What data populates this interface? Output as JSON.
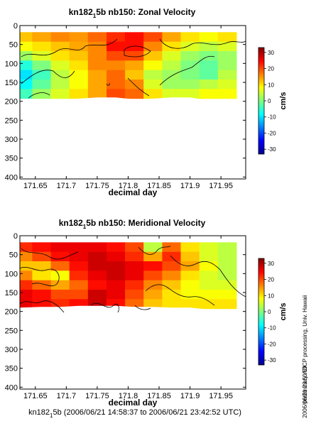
{
  "charts": [
    {
      "title_main": "kn182",
      "title_sub": "1",
      "title_rest": "5b nb150: Zonal Velocity",
      "xlabel": "decimal day",
      "unit": "cm/s",
      "xticks": [
        "171.65",
        "171.7",
        "171.75",
        "171.8",
        "171.85",
        "171.9",
        "171.95"
      ],
      "yticks": [
        "0",
        "50",
        "100",
        "150",
        "200",
        "250",
        "300",
        "350",
        "400"
      ],
      "cbticks": [
        "30",
        "20",
        "10",
        "0",
        "-10",
        "-20",
        "-30"
      ]
    },
    {
      "title_main": "kn182",
      "title_sub": "1",
      "title_rest": "5b nb150: Meridional Velocity",
      "xlabel": "decimal day",
      "unit": "cm/s",
      "xticks": [
        "171.65",
        "171.7",
        "171.75",
        "171.8",
        "171.85",
        "171.9",
        "171.95"
      ],
      "yticks": [
        "0",
        "50",
        "100",
        "150",
        "200",
        "250",
        "300",
        "350",
        "400"
      ],
      "cbticks": [
        "30",
        "20",
        "10",
        "0",
        "-10",
        "-20",
        "-30"
      ]
    }
  ],
  "footer": {
    "main": "kn182",
    "sub": "1",
    "rest": "5b (2006/06/21 14:58:37 to 2006/06/21 23:42:52 UTC)"
  },
  "side_note": "preliminary ADCP processing,  Univ. Hawaii",
  "side_date": "2006/06/21 23:50:59",
  "chart_data": [
    {
      "type": "heatmap",
      "title": "kn182_1 5b nb150: Zonal Velocity",
      "xlabel": "decimal day",
      "ylabel": "",
      "colorbar_label": "cm/s",
      "xlim": [
        171.625,
        171.99
      ],
      "ylim": [
        405,
        0
      ],
      "clim": [
        -33,
        33
      ],
      "x": [
        171.63,
        171.66,
        171.69,
        171.72,
        171.75,
        171.78,
        171.81,
        171.84,
        171.87,
        171.9,
        171.93,
        171.96
      ],
      "depth": [
        30,
        55,
        80,
        105,
        130,
        155,
        180
      ],
      "values_cm_s": [
        [
          12,
          14,
          16,
          15,
          18,
          22,
          24,
          20,
          14,
          10,
          8,
          10
        ],
        [
          8,
          10,
          12,
          14,
          16,
          24,
          24,
          16,
          10,
          6,
          4,
          6
        ],
        [
          2,
          6,
          10,
          12,
          16,
          20,
          20,
          12,
          6,
          2,
          0,
          2
        ],
        [
          -6,
          0,
          6,
          10,
          16,
          16,
          14,
          8,
          4,
          0,
          -2,
          2
        ],
        [
          -10,
          -4,
          4,
          8,
          14,
          18,
          12,
          4,
          2,
          0,
          -2,
          4
        ],
        [
          -8,
          -2,
          4,
          8,
          14,
          18,
          16,
          6,
          2,
          2,
          4,
          6
        ],
        [
          -4,
          2,
          6,
          10,
          14,
          20,
          18,
          10,
          6,
          6,
          8,
          8
        ]
      ],
      "max_depth_by_x": [
        200,
        195,
        195,
        193,
        190,
        190,
        195,
        193,
        190,
        190,
        198,
        215
      ]
    },
    {
      "type": "heatmap",
      "title": "kn182_1 5b nb150: Meridional Velocity",
      "xlabel": "decimal day",
      "ylabel": "",
      "colorbar_label": "cm/s",
      "xlim": [
        171.625,
        171.99
      ],
      "ylim": [
        405,
        0
      ],
      "clim": [
        -33,
        33
      ],
      "x": [
        171.63,
        171.66,
        171.69,
        171.72,
        171.75,
        171.78,
        171.81,
        171.84,
        171.87,
        171.9,
        171.93,
        171.96
      ],
      "depth": [
        30,
        55,
        80,
        105,
        130,
        155,
        180
      ],
      "values_cm_s": [
        [
          22,
          24,
          26,
          26,
          26,
          24,
          20,
          4,
          18,
          10,
          6,
          4
        ],
        [
          16,
          20,
          24,
          26,
          28,
          26,
          22,
          14,
          22,
          12,
          6,
          4
        ],
        [
          12,
          12,
          18,
          24,
          28,
          28,
          26,
          24,
          20,
          14,
          8,
          4
        ],
        [
          16,
          10,
          8,
          22,
          26,
          28,
          26,
          20,
          16,
          10,
          6,
          4
        ],
        [
          22,
          18,
          14,
          18,
          24,
          26,
          22,
          16,
          12,
          8,
          6,
          6
        ],
        [
          26,
          24,
          20,
          20,
          28,
          26,
          20,
          14,
          10,
          8,
          8,
          8
        ],
        [
          26,
          24,
          22,
          24,
          28,
          24,
          18,
          12,
          10,
          10,
          10,
          10
        ]
      ],
      "max_depth_by_x": [
        190,
        188,
        188,
        185,
        185,
        185,
        188,
        188,
        190,
        190,
        195,
        215
      ]
    }
  ]
}
